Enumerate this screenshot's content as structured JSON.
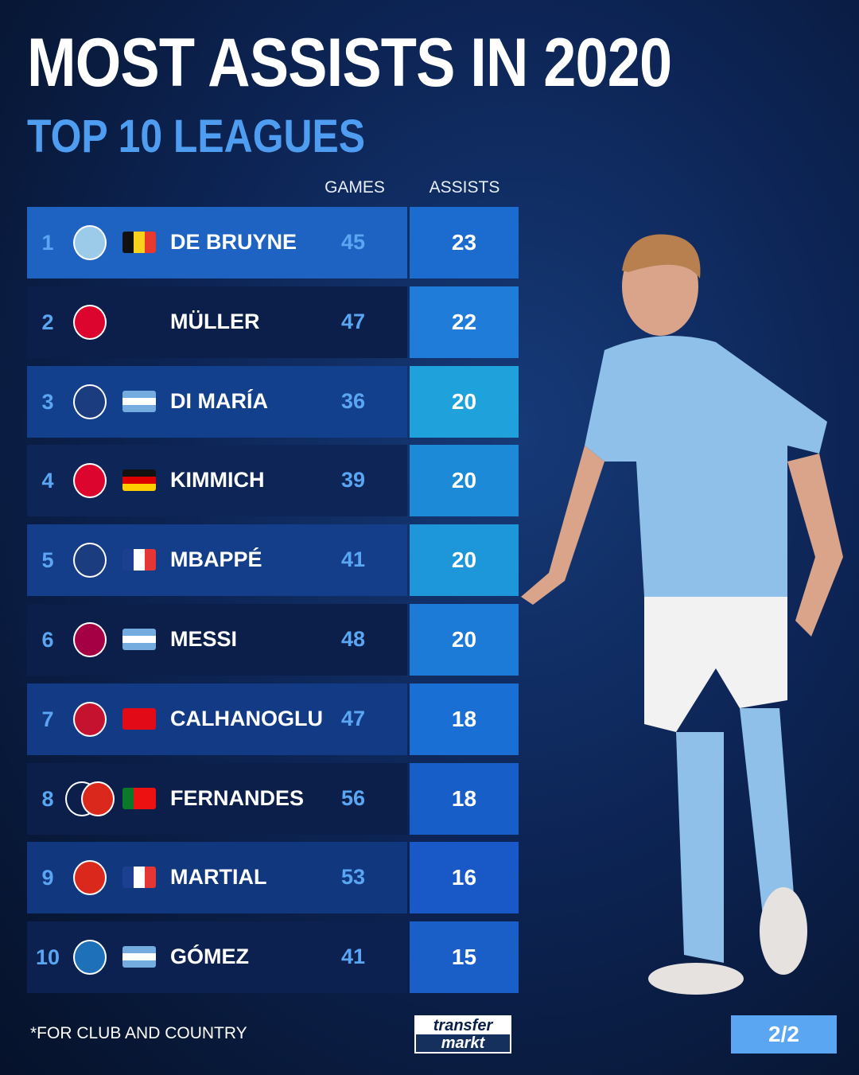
{
  "title": "MOST ASSISTS IN 2020",
  "subtitle": "TOP 10 LEAGUES",
  "footnote": "*FOR CLUB AND COUNTRY",
  "logo": {
    "line1": "transfer",
    "line2": "markt"
  },
  "page_indicator": "2/2",
  "colors": {
    "accent": "#5aa6f2",
    "background": "#0d2556"
  },
  "chart_data": {
    "type": "table",
    "columns": [
      "",
      "",
      "",
      "",
      "GAMES",
      "ASSISTS"
    ],
    "rows": [
      {
        "rank": "1",
        "club": "manchester-city",
        "flag": "belgium",
        "name": "DE BRUYNE",
        "games": "45",
        "assists": "23"
      },
      {
        "rank": "2",
        "club": "bayern-munich",
        "flag": "",
        "name": "MÜLLER",
        "games": "47",
        "assists": "22"
      },
      {
        "rank": "3",
        "club": "paris-saint-germain",
        "flag": "argentina",
        "name": "DI MARÍA",
        "games": "36",
        "assists": "20"
      },
      {
        "rank": "4",
        "club": "bayern-munich",
        "flag": "germany",
        "name": "KIMMICH",
        "games": "39",
        "assists": "20"
      },
      {
        "rank": "5",
        "club": "paris-saint-germain",
        "flag": "france",
        "name": "MBAPPÉ",
        "games": "41",
        "assists": "20"
      },
      {
        "rank": "6",
        "club": "fc-barcelona",
        "flag": "argentina",
        "name": "MESSI",
        "games": "48",
        "assists": "20"
      },
      {
        "rank": "7",
        "club": "ac-milan",
        "flag": "turkey",
        "name": "CALHANOGLU",
        "games": "47",
        "assists": "18"
      },
      {
        "rank": "8",
        "club": "sporting-cp+manchester-united",
        "flag": "portugal",
        "name": "FERNANDES",
        "games": "56",
        "assists": "18"
      },
      {
        "rank": "9",
        "club": "manchester-united",
        "flag": "france",
        "name": "MARTIAL",
        "games": "53",
        "assists": "16"
      },
      {
        "rank": "10",
        "club": "atalanta",
        "flag": "argentina",
        "name": "GÓMEZ",
        "games": "41",
        "assists": "15"
      }
    ]
  }
}
